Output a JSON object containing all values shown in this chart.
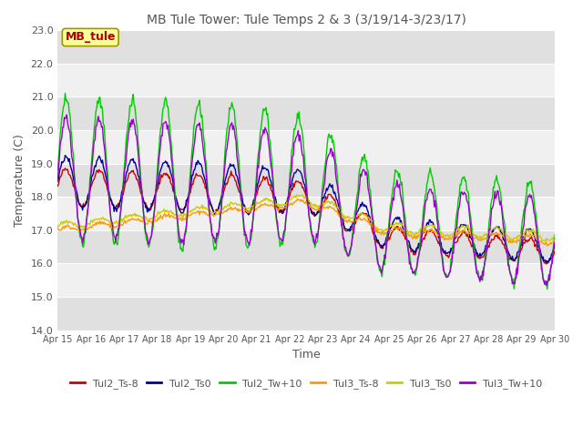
{
  "title": "MB Tule Tower: Tule Temps 2 & 3 (3/19/14-3/23/17)",
  "xlabel": "Time",
  "ylabel": "Temperature (C)",
  "ylim": [
    14.0,
    23.0
  ],
  "yticks": [
    14.0,
    15.0,
    16.0,
    17.0,
    18.0,
    19.0,
    20.0,
    21.0,
    22.0,
    23.0
  ],
  "xtick_labels": [
    "Apr 15",
    "Apr 16",
    "Apr 17",
    "Apr 18",
    "Apr 19",
    "Apr 20",
    "Apr 21",
    "Apr 22",
    "Apr 23",
    "Apr 24",
    "Apr 25",
    "Apr 26",
    "Apr 27",
    "Apr 28",
    "Apr 29",
    "Apr 30"
  ],
  "legend_labels": [
    "Tul2_Ts-8",
    "Tul2_Ts0",
    "Tul2_Tw+10",
    "Tul3_Ts-8",
    "Tul3_Ts0",
    "Tul3_Tw+10"
  ],
  "line_colors": [
    "#cc0000",
    "#000099",
    "#00cc00",
    "#ff9900",
    "#cccc00",
    "#9900cc"
  ],
  "box_label": "MB_tule",
  "box_color": "#aa0000",
  "box_bg": "#ffff99",
  "box_edge": "#999900",
  "background_color": "#ffffff",
  "plot_bg_light": "#f0f0f0",
  "plot_bg_dark": "#e0e0e0",
  "grid_color": "#ffffff",
  "title_color": "#555555",
  "tick_color": "#555555",
  "n_points": 600
}
